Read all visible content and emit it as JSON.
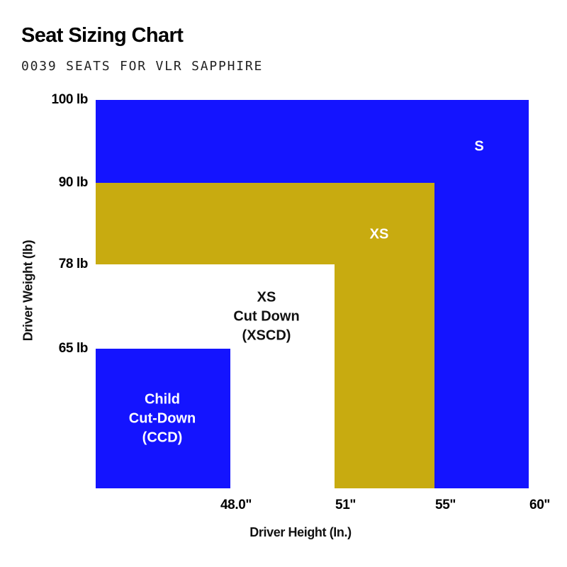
{
  "title": "Seat Sizing Chart",
  "subtitle": "0039 SEATS FOR VLR SAPPHIRE",
  "chart_data": {
    "type": "area",
    "xlabel": "Driver Height (In.)",
    "ylabel": "Driver Weight (lb)",
    "x_tick_values": [
      48,
      51,
      55,
      60
    ],
    "x_tick_labels": [
      "48.0\"",
      "51\"",
      "55\"",
      "60\""
    ],
    "y_tick_values": [
      65,
      78,
      90,
      100
    ],
    "y_tick_labels": [
      "65 lb",
      "78 lb",
      "90 lb",
      "100 lb"
    ],
    "regions": [
      {
        "label": "S",
        "max_height_in": 60,
        "max_weight_lb": 100,
        "color": "#1414ff",
        "text_color": "#ffffff"
      },
      {
        "label": "XS",
        "max_height_in": 55,
        "max_weight_lb": 90,
        "color": "#c8ab10",
        "text_color": "#ffffff"
      },
      {
        "label": "XS\nCut Down\n(XSCD)",
        "max_height_in": 51,
        "max_weight_lb": 78,
        "color": "#ffffff",
        "text_color": "#111111"
      },
      {
        "label": "Child\nCut-Down\n(CCD)",
        "max_height_in": 48,
        "max_weight_lb": 65,
        "color": "#1414ff",
        "text_color": "#ffffff"
      }
    ]
  }
}
